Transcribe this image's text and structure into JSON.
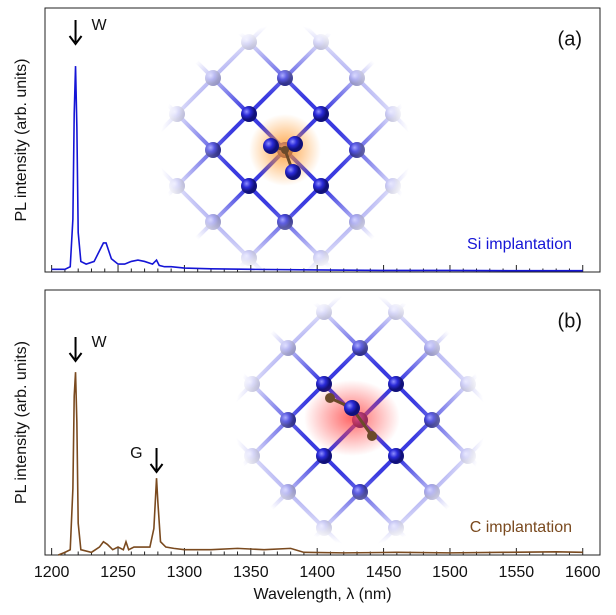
{
  "chart_data": [
    {
      "type": "line",
      "panel_label": "(a)",
      "ylabel": "PL intensity (arb. units)",
      "annotations": [
        "W"
      ],
      "x": [
        1200,
        1210,
        1214,
        1216,
        1217,
        1218,
        1219,
        1220,
        1222,
        1226,
        1232,
        1236,
        1239,
        1241,
        1243,
        1245,
        1250,
        1255,
        1260,
        1265,
        1270,
        1276,
        1279,
        1281,
        1285,
        1290,
        1300,
        1320,
        1350,
        1400,
        1450,
        1500,
        1550,
        1600
      ],
      "series": [
        {
          "name": "Si implantation",
          "color": "#1515d6",
          "values": [
            0.01,
            0.01,
            0.02,
            0.2,
            0.6,
            0.78,
            0.55,
            0.15,
            0.04,
            0.03,
            0.04,
            0.08,
            0.11,
            0.11,
            0.08,
            0.05,
            0.03,
            0.03,
            0.04,
            0.045,
            0.04,
            0.03,
            0.045,
            0.025,
            0.02,
            0.02,
            0.015,
            0.012,
            0.01,
            0.008,
            0.006,
            0.006,
            0.005,
            0.005
          ]
        }
      ],
      "xlim": [
        1195,
        1613
      ],
      "ylim": [
        0,
        1
      ],
      "xticks": [
        1200,
        1250,
        1300,
        1350,
        1400,
        1450,
        1500,
        1550,
        1600
      ],
      "xticks_minor": [
        1210,
        1220,
        1230,
        1240,
        1260,
        1270,
        1280,
        1290,
        1310,
        1320,
        1330,
        1340,
        1360,
        1370,
        1380,
        1390,
        1410,
        1420,
        1430,
        1440,
        1460,
        1470,
        1480,
        1490,
        1510,
        1520,
        1530,
        1540,
        1560,
        1570,
        1580,
        1590
      ]
    },
    {
      "type": "line",
      "panel_label": "(b)",
      "ylabel": "PL intensity (arb. units)",
      "xlabel": "Wavelength, λ (nm)",
      "annotations": [
        "W",
        "G"
      ],
      "x": [
        1205,
        1210,
        1214,
        1216,
        1217,
        1218,
        1219,
        1220,
        1222,
        1230,
        1236,
        1239,
        1242,
        1246,
        1250,
        1254,
        1256,
        1258,
        1262,
        1268,
        1274,
        1277,
        1279,
        1280,
        1282,
        1286,
        1292,
        1300,
        1320,
        1340,
        1360,
        1380,
        1390,
        1420,
        1460,
        1500,
        1540,
        1580,
        1600
      ],
      "series": [
        {
          "name": "C implantation",
          "color": "#7a4a1f",
          "values": [
            0,
            0.01,
            0.02,
            0.25,
            0.6,
            0.69,
            0.5,
            0.12,
            0.02,
            0.01,
            0.03,
            0.05,
            0.04,
            0.02,
            0.03,
            0.02,
            0.05,
            0.02,
            0.03,
            0.03,
            0.03,
            0.1,
            0.29,
            0.2,
            0.05,
            0.03,
            0.025,
            0.02,
            0.02,
            0.025,
            0.02,
            0.025,
            0.01,
            0.008,
            0.01,
            0.008,
            0.01,
            0.012,
            0.01
          ]
        }
      ],
      "xlim": [
        1195,
        1613
      ],
      "ylim": [
        0,
        1
      ],
      "xticks": [
        1200,
        1250,
        1300,
        1350,
        1400,
        1450,
        1500,
        1550,
        1600
      ],
      "xticks_minor": [
        1210,
        1220,
        1230,
        1240,
        1260,
        1270,
        1280,
        1290,
        1310,
        1320,
        1330,
        1340,
        1360,
        1370,
        1380,
        1390,
        1410,
        1420,
        1430,
        1440,
        1460,
        1470,
        1480,
        1490,
        1510,
        1520,
        1530,
        1540,
        1560,
        1570,
        1580,
        1590
      ]
    }
  ]
}
